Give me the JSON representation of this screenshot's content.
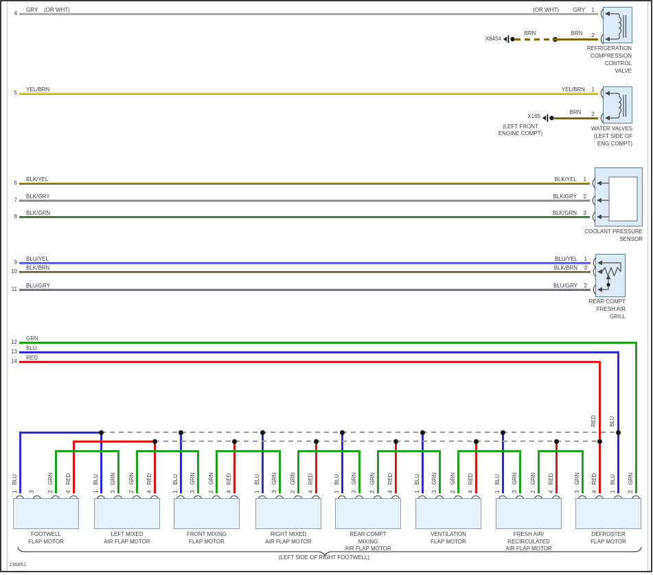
{
  "figure": {
    "number": "236851",
    "location_note": "(LEFT SIDE OF RIGHT FOOTWELL)"
  },
  "wires": [
    {
      "id": "4",
      "label": "GRY",
      "or_note": "(OR WHT)",
      "pin": "1"
    },
    {
      "id": "5",
      "label": "YEL/BRN",
      "pin": "1"
    },
    {
      "id": "6",
      "label": "BLK/YEL",
      "pin": "1"
    },
    {
      "id": "7",
      "label": "BLK/GRY",
      "pin": "2"
    },
    {
      "id": "8",
      "label": "BLK/GRN",
      "pin": "3"
    },
    {
      "id": "9",
      "label": "BLU/YEL",
      "pin": "1"
    },
    {
      "id": "10",
      "label": "BLK/BRN",
      "pin": "3"
    },
    {
      "id": "11",
      "label": "BLU/GRY",
      "pin": "2"
    },
    {
      "id": "12",
      "label": "GRN"
    },
    {
      "id": "13",
      "label": "BLU"
    },
    {
      "id": "14",
      "label": "RED"
    }
  ],
  "stubs": [
    {
      "connector": "X8454",
      "wire_label": "BRN",
      "wire_label2": "BRN",
      "pin": "2",
      "location_lines": []
    },
    {
      "connector": "X165",
      "wire_label": "BRN",
      "pin": "2",
      "location_lines": [
        "(LEFT FRONT",
        "ENGINE COMPT)"
      ]
    }
  ],
  "components": [
    {
      "key": "refrig",
      "name": "refrigeration-compression-control-valve",
      "label_lines": [
        "REFRIGERATION",
        "COMPRESSION",
        "CONTROL",
        "VALVE"
      ],
      "symbol": "solenoid-coil"
    },
    {
      "key": "water",
      "name": "water-valves",
      "label_lines": [
        "WATER VALVES",
        "(LEFT SIDE OF",
        "ENG COMPT)"
      ],
      "symbol": "solenoid-coil"
    },
    {
      "key": "coolant",
      "name": "coolant-pressure-sensor",
      "label_lines": [
        "COOLANT PRESSURE",
        "SENSOR"
      ],
      "symbol": "sensor-block"
    },
    {
      "key": "grill",
      "name": "rear-compt-fresh-air-grill",
      "label_lines": [
        "REAR COMPT",
        "FRESH AIR",
        "GRILL"
      ],
      "symbol": "potentiometer"
    }
  ],
  "feed_labels": {
    "red": "RED",
    "blue": "BLU"
  },
  "motors": [
    {
      "name": "footwell-flap-motor",
      "label_lines": [
        "FOOTWELL",
        "FLAP MOTOR"
      ],
      "pins": [
        {
          "num": "1",
          "wire": "BLU"
        },
        {
          "num": "3",
          "wire": ""
        },
        {
          "num": "2",
          "wire": "GRN"
        },
        {
          "num": "4",
          "wire": "RED"
        }
      ]
    },
    {
      "name": "left-mixed-air-flap-motor",
      "label_lines": [
        "LEFT MIXED",
        "AIR FLAP MOTOR"
      ],
      "pins": [
        {
          "num": "1",
          "wire": "BLU"
        },
        {
          "num": "3",
          "wire": "GRN"
        },
        {
          "num": "2",
          "wire": "GRN"
        },
        {
          "num": "4",
          "wire": "RED"
        }
      ]
    },
    {
      "name": "front-mixing-flap-motor",
      "label_lines": [
        "FRONT MIXING",
        "FLAP MOTOR"
      ],
      "pins": [
        {
          "num": "1",
          "wire": "BLU"
        },
        {
          "num": "3",
          "wire": "GRN"
        },
        {
          "num": "2",
          "wire": "GRN"
        },
        {
          "num": "4",
          "wire": "RED"
        }
      ]
    },
    {
      "name": "right-mixed-air-flap-motor",
      "label_lines": [
        "RIGHT MIXED",
        "AIR FLAP MOTOR"
      ],
      "pins": [
        {
          "num": "1",
          "wire": "BLU"
        },
        {
          "num": "3",
          "wire": "GRN"
        },
        {
          "num": "2",
          "wire": "GRN"
        },
        {
          "num": "4",
          "wire": "RED"
        }
      ]
    },
    {
      "name": "rear-compt-mixing-air-flap-motor",
      "label_lines": [
        "REAR COMPT",
        "MIXING",
        "AIR FLAP MOTOR"
      ],
      "pins": [
        {
          "num": "1",
          "wire": "BLU"
        },
        {
          "num": "3",
          "wire": "GRN"
        },
        {
          "num": "2",
          "wire": "GRN"
        },
        {
          "num": "4",
          "wire": "RED"
        }
      ]
    },
    {
      "name": "ventilation-flap-motor",
      "label_lines": [
        "VENTILATION",
        "FLAP MOTOR"
      ],
      "pins": [
        {
          "num": "1",
          "wire": "BLU"
        },
        {
          "num": "3",
          "wire": "GRN"
        },
        {
          "num": "2",
          "wire": "GRN"
        },
        {
          "num": "4",
          "wire": "RED"
        }
      ]
    },
    {
      "name": "fresh-air-recirculated-air-flap-motor",
      "label_lines": [
        "FRESH AIR/",
        "RECIRCULATED",
        "AIR FLAP MOTOR"
      ],
      "pins": [
        {
          "num": "1",
          "wire": "BLU"
        },
        {
          "num": "3",
          "wire": "GRN"
        },
        {
          "num": "2",
          "wire": "GRN"
        },
        {
          "num": "4",
          "wire": "RED"
        }
      ]
    },
    {
      "name": "defroster-flap-motor",
      "label_lines": [
        "DEFROSTER",
        "FLAP MOTOR"
      ],
      "pins": [
        {
          "num": "3",
          "wire": "GRN"
        },
        {
          "num": "4",
          "wire": "RED"
        },
        {
          "num": "1",
          "wire": "BLU"
        },
        {
          "num": "2",
          "wire": "GRN"
        }
      ]
    }
  ],
  "wire_colors": {
    "GRY": "#ababab",
    "YEL": "#e6da00",
    "BRN": "#7d660a",
    "BLK": "#4c4c4c",
    "GRN": "#1ca21c",
    "BLU": "#2b2bdd",
    "RED": "#e41414"
  }
}
